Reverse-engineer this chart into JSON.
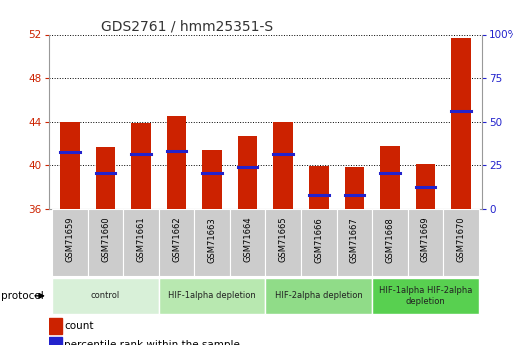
{
  "title": "GDS2761 / hmm25351-S",
  "samples": [
    "GSM71659",
    "GSM71660",
    "GSM71661",
    "GSM71662",
    "GSM71663",
    "GSM71664",
    "GSM71665",
    "GSM71666",
    "GSM71667",
    "GSM71668",
    "GSM71669",
    "GSM71670"
  ],
  "bar_tops": [
    44.0,
    41.7,
    43.9,
    44.5,
    41.4,
    42.7,
    44.0,
    39.9,
    39.8,
    41.8,
    40.1,
    51.7
  ],
  "bar_bottoms": [
    36.0,
    36.0,
    36.0,
    36.0,
    36.0,
    36.0,
    36.0,
    36.0,
    36.0,
    36.0,
    36.0,
    36.0
  ],
  "blue_marks": [
    41.2,
    39.3,
    41.0,
    41.3,
    39.3,
    39.8,
    41.0,
    37.3,
    37.3,
    39.3,
    38.0,
    45.0
  ],
  "ylim": [
    36,
    52
  ],
  "yticks_left": [
    36,
    40,
    44,
    48,
    52
  ],
  "yticks_right": [
    0,
    25,
    50,
    75,
    100
  ],
  "bar_color": "#cc2200",
  "blue_color": "#2222cc",
  "title_color": "#333333",
  "left_tick_color": "#cc2200",
  "right_tick_color": "#2222cc",
  "groups": [
    {
      "label": "control",
      "start": 0,
      "end": 3,
      "color": "#d8f0d8"
    },
    {
      "label": "HIF-1alpha depletion",
      "start": 3,
      "end": 6,
      "color": "#b8e8b0"
    },
    {
      "label": "HIF-2alpha depletion",
      "start": 6,
      "end": 9,
      "color": "#90dc88"
    },
    {
      "label": "HIF-1alpha HIF-2alpha\ndepletion",
      "start": 9,
      "end": 12,
      "color": "#58d050"
    }
  ],
  "legend_count_color": "#cc2200",
  "legend_pct_color": "#2222cc",
  "bar_width": 0.55,
  "label_bg_color": "#cccccc",
  "spine_color": "#999999"
}
